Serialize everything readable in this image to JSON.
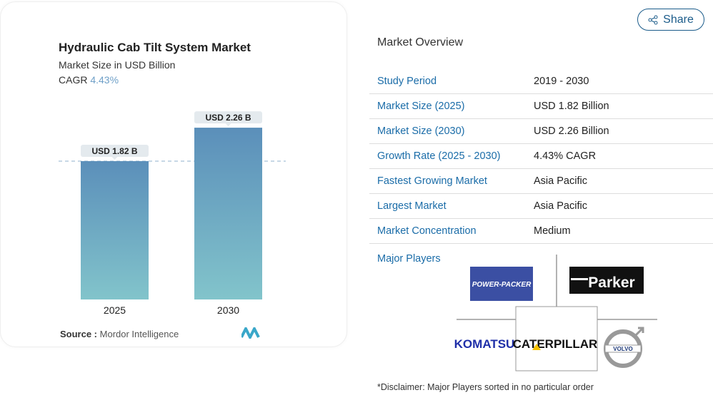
{
  "chart_data": {
    "type": "bar",
    "title": "Hydraulic Cab Tilt System Market",
    "subtitle": "Market Size in USD Billion",
    "cagr_label": "CAGR",
    "cagr_value": "4.43%",
    "categories": [
      "2025",
      "2030"
    ],
    "values": [
      1.82,
      2.26
    ],
    "data_labels": [
      "USD 1.82 B",
      "USD 2.26 B"
    ],
    "ylim": [
      0,
      2.3
    ],
    "colors": {
      "bar_top": "#5b8fba",
      "bar_bottom": "#82c4cb"
    },
    "source_label": "Source :",
    "source": "Mordor Intelligence"
  },
  "share": "Share",
  "overview": {
    "title": "Market Overview",
    "rows": [
      {
        "k": "Study Period",
        "v": "2019 - 2030"
      },
      {
        "k": "Market Size (2025)",
        "v": "USD 1.82 Billion"
      },
      {
        "k": "Market Size (2030)",
        "v": "USD 2.26 Billion"
      },
      {
        "k": "Growth Rate (2025 - 2030)",
        "v": "4.43% CAGR"
      },
      {
        "k": "Fastest Growing Market",
        "v": "Asia Pacific"
      },
      {
        "k": "Largest Market",
        "v": "Asia Pacific"
      },
      {
        "k": "Market Concentration",
        "v": "Medium"
      }
    ],
    "major_players": "Major Players",
    "players": [
      "Power-Packer",
      "Parker",
      "Komatsu",
      "Caterpillar",
      "Volvo"
    ],
    "disclaimer": "*Disclaimer: Major Players sorted in no particular order"
  }
}
